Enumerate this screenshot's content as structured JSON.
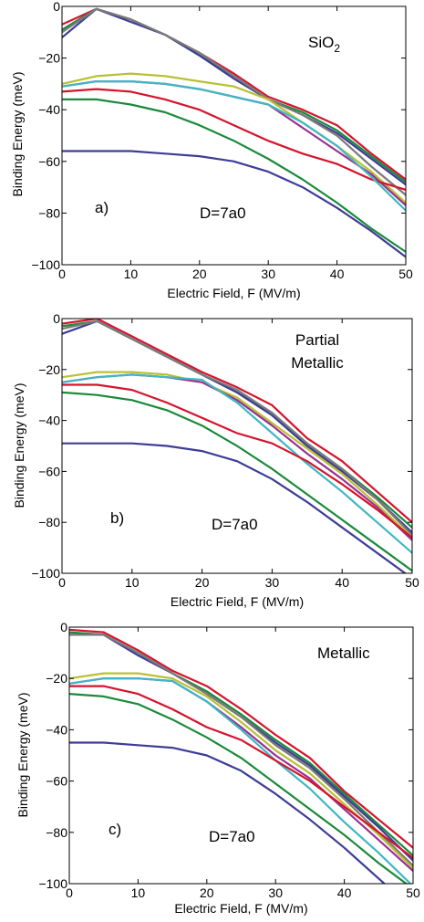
{
  "chart_data": [
    {
      "type": "line",
      "panel_label": "a)",
      "title": "SiO",
      "title_sub": "2",
      "annotation": "D=7a0",
      "xlabel": "Electric Field, F (MV/m)",
      "ylabel": "Binding Energy (meV)",
      "xlim": [
        0,
        50
      ],
      "ylim": [
        -100,
        0
      ],
      "xticks": [
        0,
        10,
        20,
        30,
        40,
        50
      ],
      "yticks": [
        0,
        -20,
        -40,
        -60,
        -80,
        -100
      ],
      "grid": false,
      "x": [
        0,
        5,
        10,
        15,
        20,
        25,
        30,
        35,
        40,
        45,
        50
      ],
      "series": [
        {
          "color": "#d4142c",
          "values": [
            -7,
            -1,
            -5,
            -11,
            -18,
            -26,
            -35,
            -40,
            -46,
            -57,
            -67
          ]
        },
        {
          "color": "#1a8a3a",
          "values": [
            -9,
            -1,
            -5,
            -11,
            -19,
            -27,
            -36,
            -41,
            -48,
            -58,
            -68
          ]
        },
        {
          "color": "#3e3c96",
          "values": [
            -12,
            -1,
            -6,
            -11,
            -19,
            -28,
            -36,
            -42,
            -49,
            -59,
            -69
          ]
        },
        {
          "color": "#7b7b7b",
          "values": [
            -10,
            -1,
            -5,
            -11,
            -18,
            -27,
            -36,
            -42,
            -50,
            -62,
            -73
          ]
        },
        {
          "color": "#b9c032",
          "values": [
            -30,
            -27,
            -26,
            -27,
            -29,
            -31,
            -36,
            -45,
            -54,
            -64,
            -76
          ]
        },
        {
          "color": "#9a3290",
          "values": [
            -31,
            -29,
            -29,
            -30,
            -32,
            -35,
            -38,
            -47,
            -56,
            -65,
            -77
          ]
        },
        {
          "color": "#d4142c",
          "values": [
            -33,
            -32,
            -33,
            -36,
            -40,
            -46,
            -52,
            -57,
            -61,
            -67,
            -71
          ]
        },
        {
          "color": "#40b7c3",
          "values": [
            -31,
            -29,
            -29,
            -30,
            -32,
            -35,
            -38,
            -45,
            -54,
            -66,
            -79
          ]
        },
        {
          "color": "#1a8a3a",
          "values": [
            -36,
            -36,
            -38,
            -41,
            -46,
            -52,
            -59,
            -67,
            -76,
            -86,
            -95
          ]
        },
        {
          "color": "#3e3c96",
          "values": [
            -56,
            -56,
            -56,
            -57,
            -58,
            -60,
            -64,
            -70,
            -78,
            -87,
            -97
          ]
        }
      ]
    },
    {
      "type": "line",
      "panel_label": "b)",
      "title_lines": [
        "Partial",
        "Metallic"
      ],
      "annotation": "D=7a0",
      "xlabel": "Electric Field, F (MV/m)",
      "ylabel": "Binding Energy (meV)",
      "xlim": [
        0,
        50
      ],
      "ylim": [
        -100,
        0
      ],
      "xticks": [
        0,
        10,
        20,
        30,
        40,
        50
      ],
      "yticks": [
        0,
        -20,
        -40,
        -60,
        -80,
        -100
      ],
      "grid": false,
      "x": [
        0,
        5,
        10,
        15,
        20,
        25,
        30,
        35,
        40,
        45,
        50
      ],
      "series": [
        {
          "color": "#d4142c",
          "values": [
            -2,
            0,
            -7,
            -14,
            -21,
            -27,
            -34,
            -47,
            -56,
            -68,
            -80
          ]
        },
        {
          "color": "#1a8a3a",
          "values": [
            -3,
            -1,
            -8,
            -15,
            -22,
            -29,
            -37,
            -49,
            -59,
            -70,
            -82
          ]
        },
        {
          "color": "#3e3c96",
          "values": [
            -6,
            -1,
            -8,
            -15,
            -22,
            -29,
            -38,
            -50,
            -60,
            -71,
            -84
          ]
        },
        {
          "color": "#7b7b7b",
          "values": [
            -4,
            -1,
            -8,
            -15,
            -22,
            -28,
            -37,
            -49,
            -59,
            -71,
            -85
          ]
        },
        {
          "color": "#b9c032",
          "values": [
            -23,
            -21,
            -21,
            -22,
            -25,
            -31,
            -41,
            -51,
            -61,
            -73,
            -86
          ]
        },
        {
          "color": "#9a3290",
          "values": [
            -25,
            -23,
            -22,
            -23,
            -25,
            -32,
            -42,
            -53,
            -63,
            -74,
            -87
          ]
        },
        {
          "color": "#40b7c3",
          "values": [
            -25,
            -23,
            -22,
            -23,
            -24,
            -33,
            -45,
            -57,
            -68,
            -80,
            -92
          ]
        },
        {
          "color": "#d4142c",
          "values": [
            -26,
            -26,
            -28,
            -33,
            -39,
            -45,
            -49,
            -56,
            -65,
            -75,
            -86
          ]
        },
        {
          "color": "#1a8a3a",
          "values": [
            -29,
            -30,
            -32,
            -36,
            -42,
            -50,
            -59,
            -69,
            -79,
            -89,
            -99
          ]
        },
        {
          "color": "#3e3c96",
          "values": [
            -49,
            -49,
            -49,
            -50,
            -52,
            -56,
            -63,
            -72,
            -82,
            -92,
            -102
          ]
        }
      ]
    },
    {
      "type": "line",
      "panel_label": "c)",
      "title": "Metallic",
      "annotation": "D=7a0",
      "xlabel": "Electric Field, F (MV/m)",
      "ylabel": "Binding Energy (meV)",
      "xlim": [
        0,
        50
      ],
      "ylim": [
        -100,
        0
      ],
      "xticks": [
        0,
        10,
        20,
        30,
        40,
        50
      ],
      "yticks": [
        0,
        -20,
        -40,
        -60,
        -80,
        -100
      ],
      "grid": false,
      "x": [
        0,
        5,
        10,
        15,
        20,
        25,
        30,
        35,
        40,
        45,
        50
      ],
      "series": [
        {
          "color": "#d4142c",
          "values": [
            -1,
            -2,
            -9,
            -17,
            -23,
            -32,
            -42,
            -51,
            -64,
            -75,
            -86
          ]
        },
        {
          "color": "#1a8a3a",
          "values": [
            -2,
            -3,
            -10,
            -18,
            -25,
            -34,
            -44,
            -53,
            -65,
            -77,
            -89
          ]
        },
        {
          "color": "#3e3c96",
          "values": [
            -3,
            -3,
            -11,
            -18,
            -26,
            -35,
            -45,
            -54,
            -66,
            -78,
            -91
          ]
        },
        {
          "color": "#7b7b7b",
          "values": [
            -3,
            -3,
            -10,
            -18,
            -26,
            -35,
            -46,
            -55,
            -67,
            -80,
            -93
          ]
        },
        {
          "color": "#b9c032",
          "values": [
            -20,
            -18,
            -18,
            -20,
            -27,
            -37,
            -48,
            -57,
            -69,
            -81,
            -94
          ]
        },
        {
          "color": "#9a3290",
          "values": [
            -22,
            -20,
            -20,
            -21,
            -29,
            -39,
            -50,
            -59,
            -71,
            -83,
            -95
          ]
        },
        {
          "color": "#40b7c3",
          "values": [
            -22,
            -20,
            -20,
            -21,
            -29,
            -40,
            -52,
            -63,
            -76,
            -88,
            -101
          ]
        },
        {
          "color": "#d4142c",
          "values": [
            -23,
            -23,
            -26,
            -32,
            -39,
            -44,
            -52,
            -60,
            -70,
            -80,
            -90
          ]
        },
        {
          "color": "#1a8a3a",
          "values": [
            -26,
            -27,
            -30,
            -36,
            -43,
            -51,
            -61,
            -71,
            -81,
            -92,
            -102
          ]
        },
        {
          "color": "#3e3c96",
          "values": [
            -45,
            -45,
            -46,
            -47,
            -50,
            -56,
            -65,
            -75,
            -86,
            -98,
            -110
          ]
        }
      ]
    }
  ]
}
